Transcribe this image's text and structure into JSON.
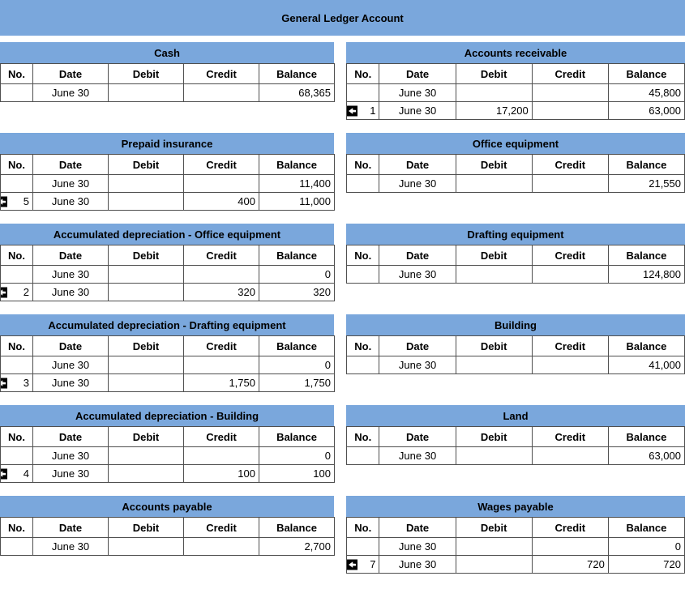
{
  "title": "General Ledger Account",
  "columns": [
    "No.",
    "Date",
    "Debit",
    "Credit",
    "Balance"
  ],
  "colors": {
    "header_blue": "#7aa7dc",
    "border": "#4f4f4f",
    "text": "#000000",
    "background": "#ffffff",
    "icon_bg": "#000000",
    "icon_arrow": "#ffffff"
  },
  "icon": {
    "name": "journal-link-icon"
  },
  "accounts": [
    {
      "name": "Cash",
      "rows": [
        {
          "link": false,
          "no": "",
          "date": "June 30",
          "debit": "",
          "credit": "",
          "balance": "68,365"
        }
      ]
    },
    {
      "name": "Accounts receivable",
      "rows": [
        {
          "link": false,
          "no": "",
          "date": "June 30",
          "debit": "",
          "credit": "",
          "balance": "45,800"
        },
        {
          "link": true,
          "no": "1",
          "date": "June 30",
          "debit": "17,200",
          "credit": "",
          "balance": "63,000"
        }
      ]
    },
    {
      "name": "Prepaid insurance",
      "rows": [
        {
          "link": false,
          "no": "",
          "date": "June 30",
          "debit": "",
          "credit": "",
          "balance": "11,400"
        },
        {
          "link": true,
          "no": "5",
          "date": "June 30",
          "debit": "",
          "credit": "400",
          "balance": "11,000"
        }
      ]
    },
    {
      "name": "Office equipment",
      "rows": [
        {
          "link": false,
          "no": "",
          "date": "June 30",
          "debit": "",
          "credit": "",
          "balance": "21,550"
        }
      ]
    },
    {
      "name": "Accumulated depreciation - Office equipment",
      "rows": [
        {
          "link": false,
          "no": "",
          "date": "June 30",
          "debit": "",
          "credit": "",
          "balance": "0"
        },
        {
          "link": true,
          "no": "2",
          "date": "June 30",
          "debit": "",
          "credit": "320",
          "balance": "320"
        }
      ]
    },
    {
      "name": "Drafting equipment",
      "rows": [
        {
          "link": false,
          "no": "",
          "date": "June 30",
          "debit": "",
          "credit": "",
          "balance": "124,800"
        }
      ]
    },
    {
      "name": "Accumulated depreciation - Drafting equipment",
      "rows": [
        {
          "link": false,
          "no": "",
          "date": "June 30",
          "debit": "",
          "credit": "",
          "balance": "0"
        },
        {
          "link": true,
          "no": "3",
          "date": "June 30",
          "debit": "",
          "credit": "1,750",
          "balance": "1,750"
        }
      ]
    },
    {
      "name": "Building",
      "rows": [
        {
          "link": false,
          "no": "",
          "date": "June 30",
          "debit": "",
          "credit": "",
          "balance": "41,000"
        }
      ]
    },
    {
      "name": "Accumulated depreciation - Building",
      "rows": [
        {
          "link": false,
          "no": "",
          "date": "June 30",
          "debit": "",
          "credit": "",
          "balance": "0"
        },
        {
          "link": true,
          "no": "4",
          "date": "June 30",
          "debit": "",
          "credit": "100",
          "balance": "100"
        }
      ]
    },
    {
      "name": "Land",
      "rows": [
        {
          "link": false,
          "no": "",
          "date": "June 30",
          "debit": "",
          "credit": "",
          "balance": "63,000"
        }
      ]
    },
    {
      "name": "Accounts payable",
      "rows": [
        {
          "link": false,
          "no": "",
          "date": "June 30",
          "debit": "",
          "credit": "",
          "balance": "2,700"
        }
      ]
    },
    {
      "name": "Wages payable",
      "rows": [
        {
          "link": false,
          "no": "",
          "date": "June 30",
          "debit": "",
          "credit": "",
          "balance": "0"
        },
        {
          "link": true,
          "no": "7",
          "date": "June 30",
          "debit": "",
          "credit": "720",
          "balance": "720"
        }
      ]
    }
  ],
  "partial_next_row": {
    "visible": true,
    "bands": 2
  }
}
